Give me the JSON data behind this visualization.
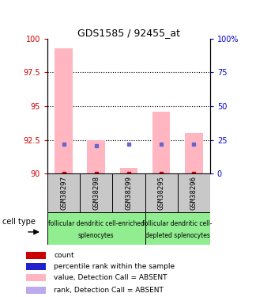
{
  "title": "GDS1585 / 92455_at",
  "samples": [
    "GSM38297",
    "GSM38298",
    "GSM38299",
    "GSM38295",
    "GSM38296"
  ],
  "x_positions": [
    1,
    2,
    3,
    4,
    5
  ],
  "ylim_left": [
    90,
    100
  ],
  "ylim_right": [
    0,
    100
  ],
  "yticks_left": [
    90,
    92.5,
    95,
    97.5,
    100
  ],
  "ytick_labels_left": [
    "90",
    "92.5",
    "95",
    "97.5",
    "100"
  ],
  "yticks_right": [
    0,
    25,
    50,
    75,
    100
  ],
  "ytick_labels_right": [
    "0",
    "25",
    "50",
    "75",
    "100%"
  ],
  "hlines": [
    92.5,
    95,
    97.5
  ],
  "pink_bar_tops": [
    99.3,
    92.5,
    90.45,
    94.6,
    93.0
  ],
  "pink_bar_bottom": 90,
  "red_marker_y": [
    90.0,
    90.0,
    90.0,
    90.0,
    90.0
  ],
  "blue_marker_y": [
    92.2,
    92.1,
    92.2,
    92.2,
    92.2
  ],
  "pink_bar_color": "#FFB6C1",
  "red_marker_color": "#CC0000",
  "blue_marker_color": "#6666CC",
  "group1_label_line1": "follicular dendritic cell-enriched",
  "group1_label_line2": "splenocytes",
  "group2_label_line1": "follicular dendritic cell-",
  "group2_label_line2": "depleted splenocytes",
  "group_bg": "#90EE90",
  "sample_box_bg": "#C8C8C8",
  "cell_type_label": "cell type",
  "legend_items": [
    {
      "color": "#CC0000",
      "label": "count"
    },
    {
      "color": "#2222CC",
      "label": "percentile rank within the sample"
    },
    {
      "color": "#FFB6C1",
      "label": "value, Detection Call = ABSENT"
    },
    {
      "color": "#BBAAEE",
      "label": "rank, Detection Call = ABSENT"
    }
  ],
  "left_tick_color": "#CC0000",
  "right_tick_color": "#0000CC"
}
